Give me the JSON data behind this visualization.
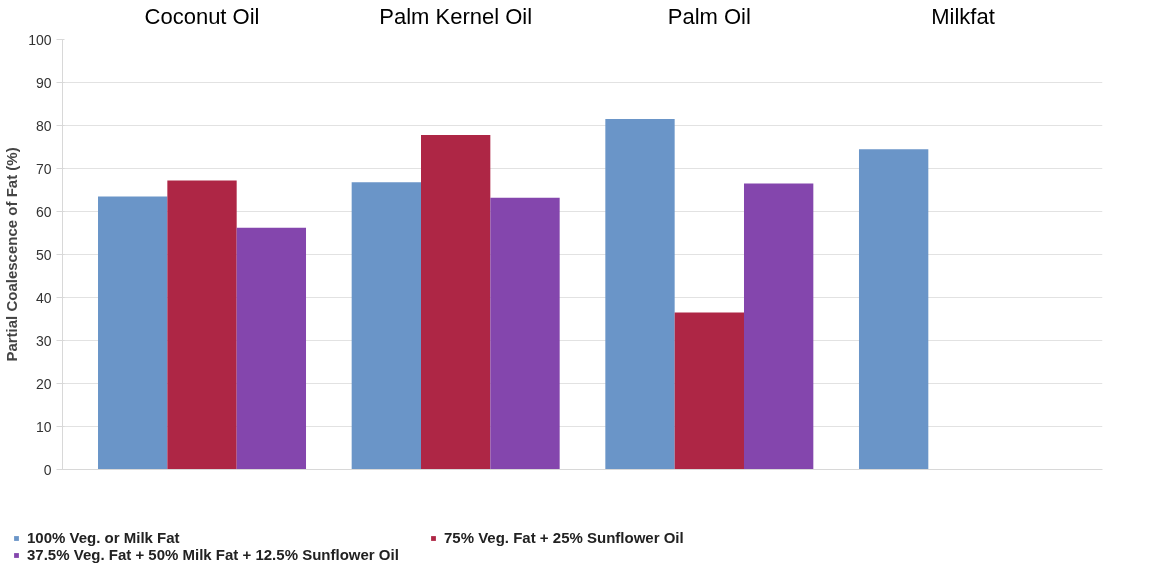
{
  "chart_data": {
    "type": "bar",
    "ylabel": "Partial Coalescence of Fat (%)",
    "categories": [
      "Coconut Oil",
      "Palm Kernel Oil",
      "Palm Oil",
      "Milkfat"
    ],
    "series": [
      {
        "name": "100% Veg. or Milk Fat",
        "color": "#6a95c8",
        "values": [
          63.5,
          66.8,
          81.5,
          74.5
        ]
      },
      {
        "name": "75% Veg. Fat + 25% Sunflower Oil",
        "color": "#ae2645",
        "values": [
          67.2,
          77.8,
          36.5,
          null
        ]
      },
      {
        "name": "37.5% Veg. Fat + 50% Milk Fat + 12.5% Sunflower Oil",
        "color": "#8446ad",
        "values": [
          56.2,
          63.2,
          66.5,
          null
        ]
      }
    ],
    "ylim": [
      0,
      100
    ],
    "yticks": [
      0,
      10,
      20,
      30,
      40,
      50,
      60,
      70,
      80,
      90,
      100
    ],
    "grid": "y",
    "legend": "bottom"
  }
}
